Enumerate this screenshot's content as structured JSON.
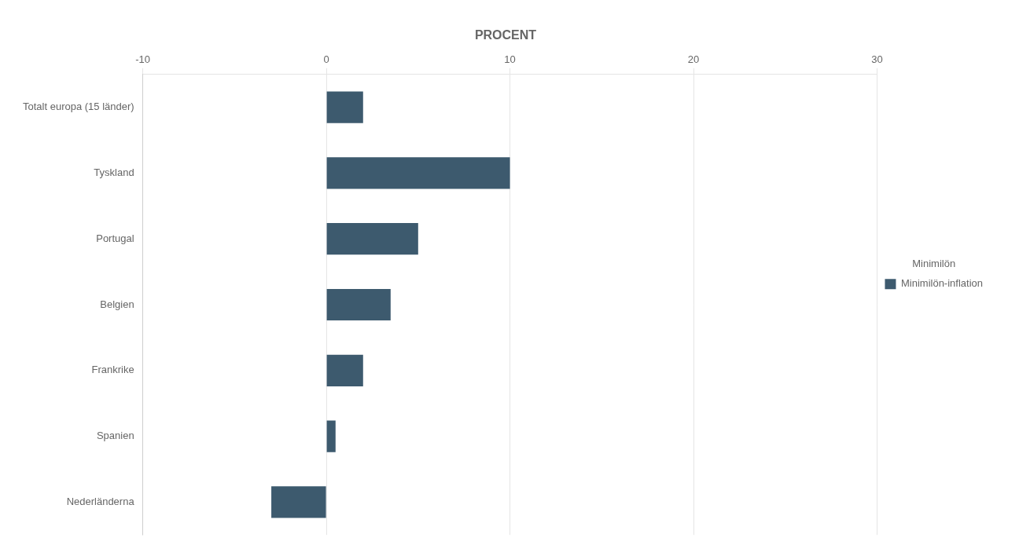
{
  "chart_data": {
    "type": "bar",
    "orientation": "horizontal",
    "title": "PROCENT",
    "categories": [
      "Totalt europa (15 länder)",
      "Tyskland",
      "Portugal",
      "Belgien",
      "Frankrike",
      "Spanien",
      "Nederländerna"
    ],
    "series": [
      {
        "name": "Minimilön-inflation",
        "color": "#3d5a6e",
        "values": [
          2.0,
          10.0,
          5.0,
          3.5,
          2.0,
          0.5,
          -3.0
        ]
      }
    ],
    "legend_title": "Minimilön",
    "legend": "right",
    "xlim": [
      -10,
      30
    ],
    "xticks": [
      -10,
      0,
      10,
      20,
      30
    ],
    "grid": true
  }
}
